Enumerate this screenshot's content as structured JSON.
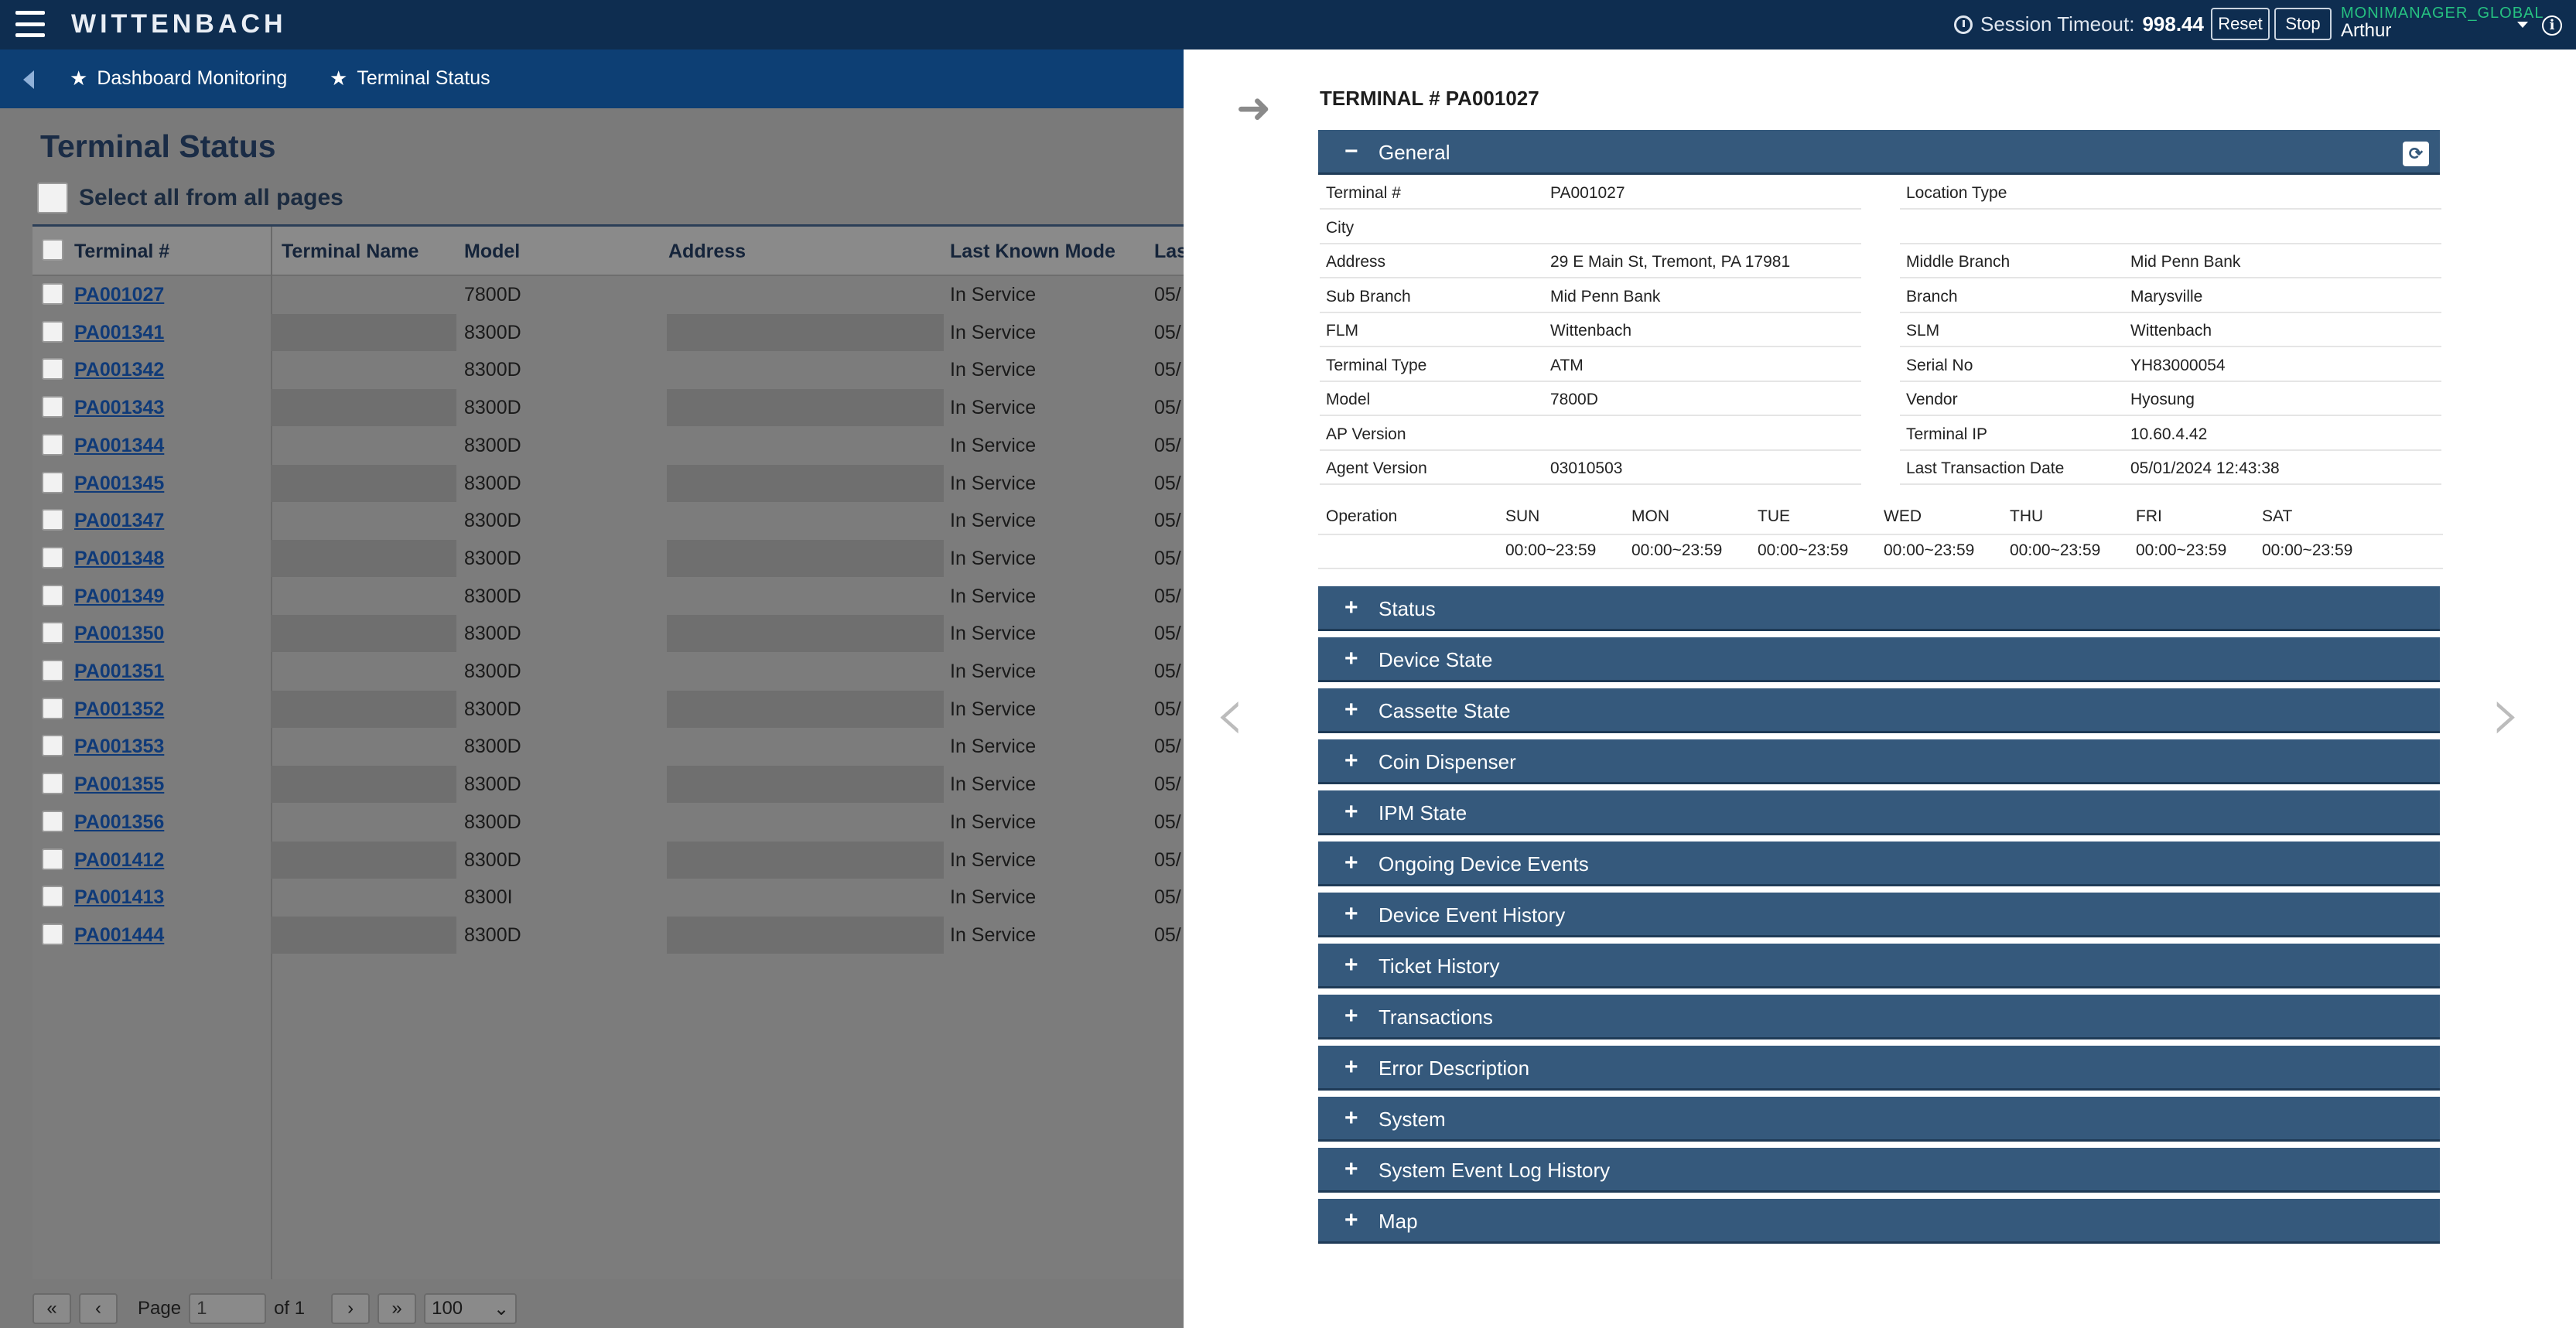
{
  "topbar": {
    "brand": "WITTENBACH",
    "session_label": "Session Timeout:",
    "session_value": "998.44",
    "reset_label": "Reset",
    "stop_label": "Stop",
    "user_org": "MONIMANAGER_GLOBAL",
    "user_name": "Arthur"
  },
  "breadcrumb": {
    "items": [
      "Dashboard Monitoring",
      "Terminal Status"
    ]
  },
  "main": {
    "title": "Terminal Status",
    "select_all_label": "Select all from all pages",
    "columns": [
      "Terminal #",
      "Terminal Name",
      "Model",
      "Address",
      "Last Known Mode",
      "Las"
    ],
    "rows": [
      {
        "terminal": "PA001027",
        "name": "",
        "model": "7800D",
        "address": "",
        "mode": "In Service",
        "last": "05/"
      },
      {
        "terminal": "PA001341",
        "name": "",
        "model": "8300D",
        "address": "",
        "mode": "In Service",
        "last": "05/"
      },
      {
        "terminal": "PA001342",
        "name": "",
        "model": "8300D",
        "address": "",
        "mode": "In Service",
        "last": "05/"
      },
      {
        "terminal": "PA001343",
        "name": "",
        "model": "8300D",
        "address": "",
        "mode": "In Service",
        "last": "05/"
      },
      {
        "terminal": "PA001344",
        "name": "",
        "model": "8300D",
        "address": "",
        "mode": "In Service",
        "last": "05/"
      },
      {
        "terminal": "PA001345",
        "name": "",
        "model": "8300D",
        "address": "",
        "mode": "In Service",
        "last": "05/"
      },
      {
        "terminal": "PA001347",
        "name": "",
        "model": "8300D",
        "address": "",
        "mode": "In Service",
        "last": "05/"
      },
      {
        "terminal": "PA001348",
        "name": "",
        "model": "8300D",
        "address": "",
        "mode": "In Service",
        "last": "05/"
      },
      {
        "terminal": "PA001349",
        "name": "",
        "model": "8300D",
        "address": "",
        "mode": "In Service",
        "last": "05/"
      },
      {
        "terminal": "PA001350",
        "name": "",
        "model": "8300D",
        "address": "",
        "mode": "In Service",
        "last": "05/"
      },
      {
        "terminal": "PA001351",
        "name": "",
        "model": "8300D",
        "address": "",
        "mode": "In Service",
        "last": "05/"
      },
      {
        "terminal": "PA001352",
        "name": "",
        "model": "8300D",
        "address": "",
        "mode": "In Service",
        "last": "05/"
      },
      {
        "terminal": "PA001353",
        "name": "",
        "model": "8300D",
        "address": "",
        "mode": "In Service",
        "last": "05/"
      },
      {
        "terminal": "PA001355",
        "name": "",
        "model": "8300D",
        "address": "",
        "mode": "In Service",
        "last": "05/"
      },
      {
        "terminal": "PA001356",
        "name": "",
        "model": "8300D",
        "address": "",
        "mode": "In Service",
        "last": "05/"
      },
      {
        "terminal": "PA001412",
        "name": "",
        "model": "8300D",
        "address": "",
        "mode": "In Service",
        "last": "05/"
      },
      {
        "terminal": "PA001413",
        "name": "",
        "model": "8300I",
        "address": "",
        "mode": "In Service",
        "last": "05/"
      },
      {
        "terminal": "PA001444",
        "name": "",
        "model": "8300D",
        "address": "",
        "mode": "In Service",
        "last": "05/"
      }
    ],
    "pager": {
      "first": "«",
      "prev": "‹",
      "page_label": "Page",
      "page_value": "1",
      "of_label": "of 1",
      "next": "›",
      "last": "»",
      "page_size": "100"
    }
  },
  "panel": {
    "title": "TERMINAL # PA001027",
    "general_label": "General",
    "general_sign": "−",
    "collapsed_sign": "+",
    "left_fields": [
      {
        "k": "Terminal #",
        "v": "PA001027"
      },
      {
        "k": "City",
        "v": ""
      },
      {
        "k": "Address",
        "v": "29 E Main St, Tremont, PA 17981"
      },
      {
        "k": "Sub Branch",
        "v": "Mid Penn Bank"
      },
      {
        "k": "FLM",
        "v": "Wittenbach"
      },
      {
        "k": "Terminal Type",
        "v": "ATM"
      },
      {
        "k": "Model",
        "v": "7800D"
      },
      {
        "k": "AP Version",
        "v": ""
      },
      {
        "k": "Agent Version",
        "v": "03010503"
      }
    ],
    "right_fields": [
      {
        "k": "Location Type",
        "v": ""
      },
      {
        "k": "",
        "v": ""
      },
      {
        "k": "Middle Branch",
        "v": "Mid Penn Bank"
      },
      {
        "k": "Branch",
        "v": "Marysville"
      },
      {
        "k": "SLM",
        "v": "Wittenbach"
      },
      {
        "k": "Serial No",
        "v": "YH83000054"
      },
      {
        "k": "Vendor",
        "v": "Hyosung"
      },
      {
        "k": "Terminal IP",
        "v": "10.60.4.42"
      },
      {
        "k": "Last Transaction Date",
        "v": "05/01/2024 12:43:38"
      }
    ],
    "operation": {
      "label": "Operation",
      "days": [
        "SUN",
        "MON",
        "TUE",
        "WED",
        "THU",
        "FRI",
        "SAT"
      ],
      "hours": [
        "00:00~23:59",
        "00:00~23:59",
        "00:00~23:59",
        "00:00~23:59",
        "00:00~23:59",
        "00:00~23:59",
        "00:00~23:59"
      ]
    },
    "sections": [
      "Status",
      "Device State",
      "Cassette State",
      "Coin Dispenser",
      "IPM State",
      "Ongoing Device Events",
      "Device Event History",
      "Ticket History",
      "Transactions",
      "Error Description",
      "System",
      "System Event Log History",
      "Map"
    ]
  }
}
